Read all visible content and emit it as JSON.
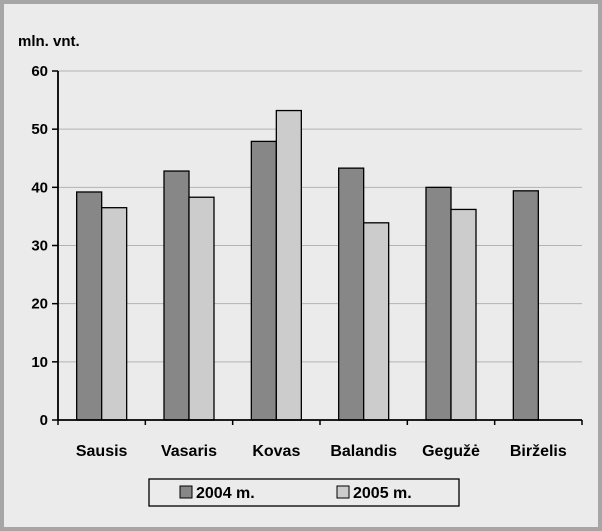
{
  "chart_data": {
    "type": "bar",
    "ylabel": "mln. vnt.",
    "categories": [
      "Sausis",
      "Vasaris",
      "Kovas",
      "Balandis",
      "Gegužė",
      "Birželis"
    ],
    "series": [
      {
        "name": "2004 m.",
        "values": [
          39.2,
          42.8,
          47.9,
          43.3,
          40.0,
          39.4
        ],
        "color": "#878787"
      },
      {
        "name": "2005 m.",
        "values": [
          36.5,
          38.3,
          53.2,
          33.9,
          36.2,
          null
        ],
        "color": "#cccccc"
      }
    ],
    "ylim": [
      0,
      60
    ],
    "yticks": [
      0,
      10,
      20,
      30,
      40,
      50,
      60
    ],
    "grid": true,
    "legend_position": "bottom"
  }
}
